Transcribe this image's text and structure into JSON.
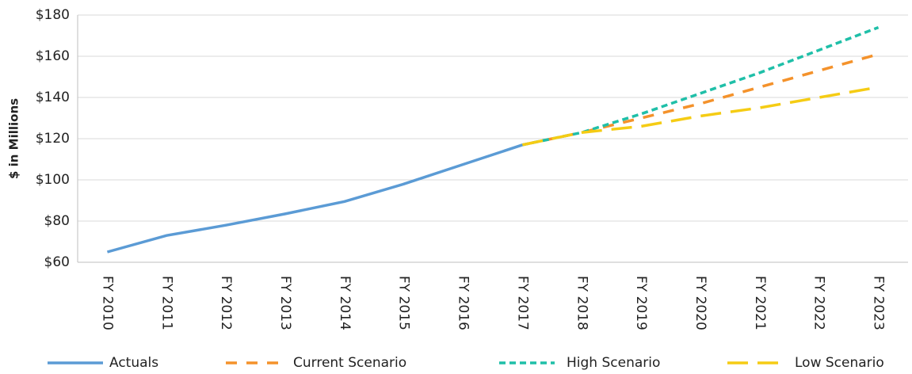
{
  "chart_data": {
    "type": "line",
    "y_label": "$ in Millions",
    "categories": [
      "FY 2010",
      "FY 2011",
      "FY 2012",
      "FY 2013",
      "FY 2014",
      "FY 2015",
      "FY 2016",
      "FY 2017",
      "FY 2018",
      "FY 2019",
      "FY 2020",
      "FY 2021",
      "FY 2022",
      "FY 2023"
    ],
    "series": [
      {
        "name": "Actuals",
        "color": "#5b9bd5",
        "dash": "solid",
        "values": [
          65,
          73,
          78,
          83.5,
          89.5,
          98,
          107.5,
          117,
          null,
          null,
          null,
          null,
          null,
          null
        ]
      },
      {
        "name": "Current Scenario",
        "color": "#f4922b",
        "dash": "medium",
        "values": [
          null,
          null,
          null,
          null,
          null,
          null,
          null,
          117,
          123,
          130,
          137,
          145,
          153,
          161
        ]
      },
      {
        "name": "High Scenario",
        "color": "#1fbfa8",
        "dash": "short",
        "values": [
          null,
          null,
          null,
          null,
          null,
          null,
          null,
          117,
          123,
          132,
          142,
          152,
          163,
          174
        ]
      },
      {
        "name": "Low Scenario",
        "color": "#f5cc14",
        "dash": "long",
        "values": [
          null,
          null,
          null,
          null,
          null,
          null,
          null,
          117,
          123,
          126,
          131,
          135,
          140,
          145
        ]
      }
    ],
    "ylim": [
      60,
      180
    ],
    "yticks": [
      {
        "value": 60,
        "label": "$60"
      },
      {
        "value": 80,
        "label": "$80"
      },
      {
        "value": 100,
        "label": "$100"
      },
      {
        "value": 120,
        "label": "$120"
      },
      {
        "value": 140,
        "label": "$140"
      },
      {
        "value": 160,
        "label": "$160"
      },
      {
        "value": 180,
        "label": "$180"
      }
    ],
    "grid": true,
    "legend": "bottom"
  }
}
